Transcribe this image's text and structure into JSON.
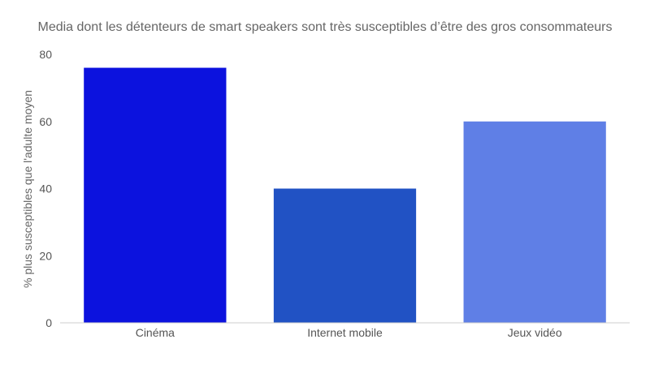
{
  "chart_data": {
    "type": "bar",
    "title": "Media dont les détenteurs de smart speakers sont très susceptibles d’être des gros consommateurs",
    "xlabel": "",
    "ylabel": "% plus susceptibles que l'adulte moyen",
    "categories": [
      "Cinéma",
      "Internet mobile",
      "Jeux vidéo"
    ],
    "values": [
      76,
      40,
      60
    ],
    "colors": [
      "#0c12de",
      "#2152c4",
      "#5f7fe6"
    ],
    "ylim": [
      0,
      80
    ],
    "yticks": [
      "0",
      "20",
      "40",
      "60",
      "80"
    ],
    "grid": false,
    "legend": "none"
  }
}
